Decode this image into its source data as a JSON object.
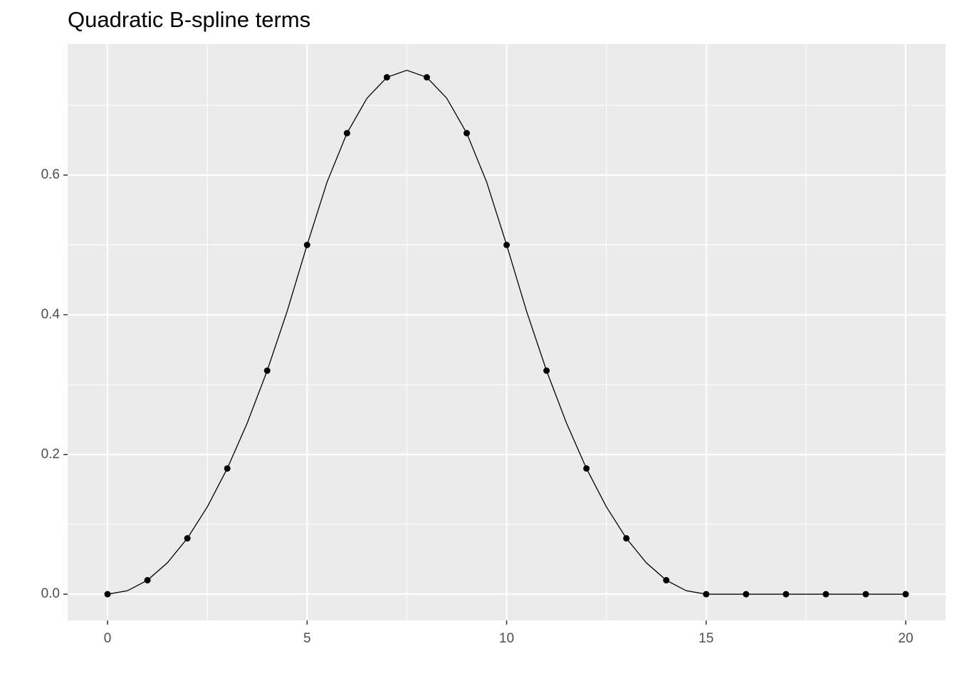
{
  "chart_data": {
    "type": "line",
    "title": "Quadratic B-spline terms",
    "xlim": [
      -1,
      21
    ],
    "ylim": [
      -0.0375,
      0.7875
    ],
    "xticks": [
      0,
      5,
      10,
      15,
      20
    ],
    "yticks": [
      {
        "value": 0,
        "label": "0.0"
      },
      {
        "value": 0.2,
        "label": "0.2"
      },
      {
        "value": 0.4,
        "label": "0.4"
      },
      {
        "value": 0.6,
        "label": "0.6"
      }
    ],
    "x_minor_grid": [
      2.5,
      7.5,
      12.5,
      17.5
    ],
    "y_minor_grid": [
      0.1,
      0.3,
      0.5,
      0.7
    ],
    "grid": true,
    "panel_color": "#ebebeb",
    "series": [
      {
        "type": "line",
        "color": "#000000",
        "x": [
          0,
          0.5,
          1,
          1.5,
          2,
          2.5,
          3,
          3.5,
          4,
          4.5,
          5,
          5.5,
          6,
          6.5,
          7,
          7.5,
          8,
          8.5,
          9,
          9.5,
          10,
          10.5,
          11,
          11.5,
          12,
          12.5,
          13,
          13.5,
          14,
          14.5,
          15,
          15.5,
          16,
          16.5,
          17,
          17.5,
          18,
          18.5,
          19,
          19.5,
          20
        ],
        "values": [
          0,
          0.005,
          0.02,
          0.045,
          0.08,
          0.125,
          0.18,
          0.245,
          0.32,
          0.405,
          0.5,
          0.59,
          0.66,
          0.71,
          0.74,
          0.75,
          0.74,
          0.71,
          0.66,
          0.59,
          0.5,
          0.405,
          0.32,
          0.245,
          0.18,
          0.125,
          0.08,
          0.045,
          0.02,
          0.005,
          0,
          0,
          0,
          0,
          0,
          0,
          0,
          0,
          0,
          0,
          0
        ]
      },
      {
        "type": "scatter",
        "color": "#000000",
        "x": [
          0,
          1,
          2,
          3,
          4,
          5,
          6,
          7,
          8,
          9,
          10,
          11,
          12,
          13,
          14,
          15,
          16,
          17,
          18,
          19,
          20
        ],
        "values": [
          0,
          0.02,
          0.08,
          0.18,
          0.32,
          0.5,
          0.66,
          0.74,
          0.74,
          0.66,
          0.5,
          0.32,
          0.18,
          0.08,
          0.02,
          0,
          0,
          0,
          0,
          0,
          0
        ]
      }
    ]
  }
}
